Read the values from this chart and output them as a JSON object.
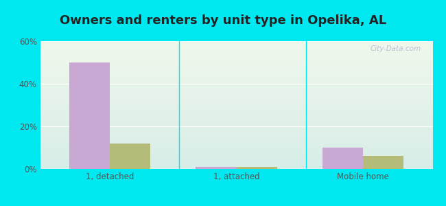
{
  "title": "Owners and renters by unit type in Opelika, AL",
  "categories": [
    "1, detached",
    "1, attached",
    "Mobile home"
  ],
  "owner_values": [
    50.0,
    1.0,
    10.0
  ],
  "renter_values": [
    12.0,
    1.0,
    6.0
  ],
  "owner_color": "#c9a8d4",
  "renter_color": "#b5bc7a",
  "outer_bg": "#00e8f0",
  "ylim": [
    0,
    60
  ],
  "yticks": [
    0,
    20,
    40,
    60
  ],
  "ytick_labels": [
    "0%",
    "20%",
    "40%",
    "60%"
  ],
  "bar_width": 0.32,
  "watermark": "City-Data.com",
  "title_fontsize": 13,
  "tick_fontsize": 8.5,
  "legend_fontsize": 9,
  "grad_top": "#f0f8ec",
  "grad_bottom": "#d8ede8"
}
